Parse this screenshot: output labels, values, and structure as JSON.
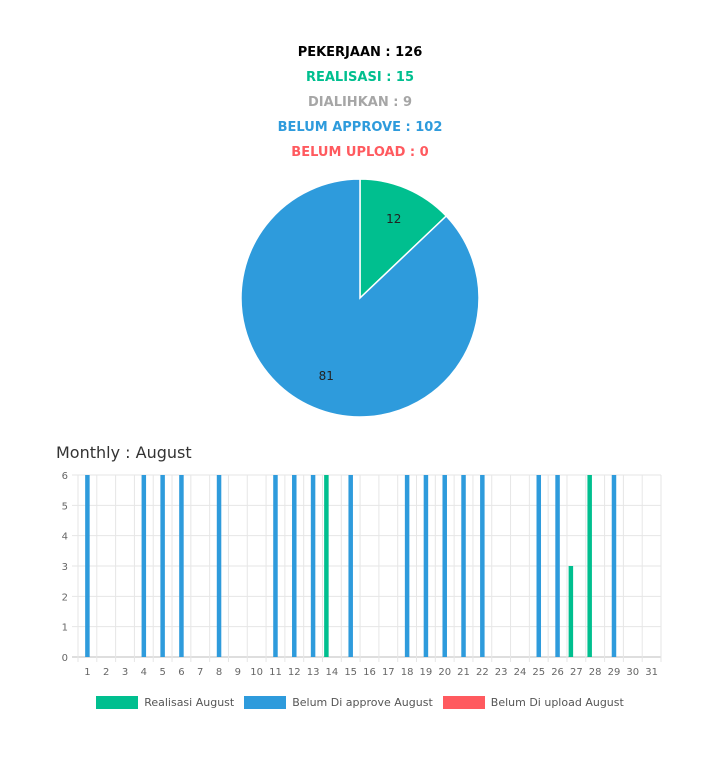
{
  "summary": {
    "pekerjaan": "PEKERJAAN : 126",
    "realisasi": "REALISASI : 15",
    "dialihkan": "DIALIHKAN : 9",
    "belum_approve": "BELUM APPROVE : 102",
    "belum_upload": "BELUM UPLOAD : 0"
  },
  "colors": {
    "realisasi": "#00bf8f",
    "dialihkan": "#a6a6a6",
    "belum_approve": "#2e9bdc",
    "belum_upload": "#ff5a5f",
    "pekerjaan": "#000000"
  },
  "monthly": {
    "title": "Monthly : August"
  },
  "chart_data": [
    {
      "type": "pie",
      "slices": [
        {
          "label": "",
          "value": 12,
          "color": "#00bf8f"
        },
        {
          "label": "",
          "value": 81,
          "color": "#2e9bdc"
        }
      ],
      "data_labels": [
        "12",
        "81"
      ]
    },
    {
      "type": "bar",
      "title": "Monthly : August",
      "categories": [
        "1",
        "2",
        "3",
        "4",
        "5",
        "6",
        "7",
        "8",
        "9",
        "10",
        "11",
        "12",
        "13",
        "14",
        "15",
        "16",
        "17",
        "18",
        "19",
        "20",
        "21",
        "22",
        "23",
        "24",
        "25",
        "26",
        "27",
        "28",
        "29",
        "30",
        "31"
      ],
      "ylim": [
        0,
        6
      ],
      "yticks": [
        0,
        1,
        2,
        3,
        4,
        5,
        6
      ],
      "grid": true,
      "legend_position": "bottom",
      "series": [
        {
          "name": "Realisasi August",
          "color": "#00bf8f",
          "values": [
            0,
            0,
            0,
            0,
            0,
            0,
            0,
            0,
            0,
            0,
            0,
            0,
            0,
            6,
            0,
            0,
            0,
            0,
            0,
            0,
            0,
            0,
            0,
            0,
            0,
            0,
            3,
            6,
            0,
            0,
            0
          ]
        },
        {
          "name": "Belum Di approve August",
          "color": "#2e9bdc",
          "values": [
            6,
            0,
            0,
            6,
            6,
            6,
            0,
            6,
            0,
            0,
            6,
            6,
            6,
            0,
            6,
            0,
            0,
            6,
            6,
            6,
            6,
            6,
            0,
            0,
            6,
            6,
            0,
            0,
            6,
            0,
            0
          ]
        },
        {
          "name": "Belum Di upload August",
          "color": "#ff5a5f",
          "values": [
            0,
            0,
            0,
            0,
            0,
            0,
            0,
            0,
            0,
            0,
            0,
            0,
            0,
            0,
            0,
            0,
            0,
            0,
            0,
            0,
            0,
            0,
            0,
            0,
            0,
            0,
            0,
            0,
            0,
            0,
            0
          ]
        }
      ]
    }
  ]
}
